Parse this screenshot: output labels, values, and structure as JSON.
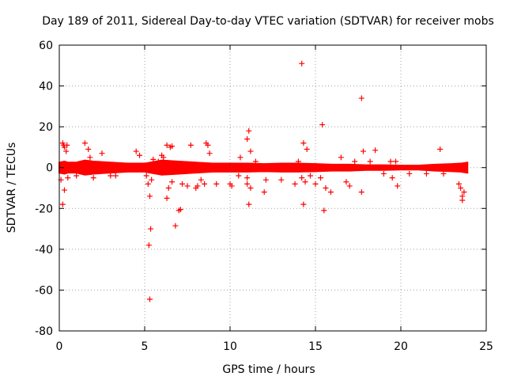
{
  "chart_data": {
    "type": "scatter",
    "title": "Day 189 of 2011, Sidereal Day-to-day VTEC variation (SDTVAR) for receiver mobs",
    "xlabel": "GPS time / hours",
    "ylabel": "SDTVAR / TECUs",
    "xlim": [
      0,
      25
    ],
    "ylim": [
      -80,
      60
    ],
    "xticks": [
      0,
      5,
      10,
      15,
      20,
      25
    ],
    "yticks": [
      -80,
      -60,
      -40,
      -20,
      0,
      20,
      40,
      60
    ],
    "grid": true,
    "marker": "+",
    "series": [
      {
        "name": "mobs",
        "color": "#ff0000",
        "band": [
          [
            0.0,
            2.5
          ],
          [
            0.3,
            3.0
          ],
          [
            0.5,
            2.5
          ],
          [
            1.0,
            2.5
          ],
          [
            1.5,
            3.5
          ],
          [
            2.0,
            3.0
          ],
          [
            3.0,
            2.5
          ],
          [
            4.0,
            2.0
          ],
          [
            5.0,
            2.0
          ],
          [
            6.0,
            3.5
          ],
          [
            7.0,
            3.0
          ],
          [
            8.0,
            2.5
          ],
          [
            9.0,
            2.0
          ],
          [
            10.0,
            2.0
          ],
          [
            11.0,
            2.0
          ],
          [
            12.0,
            1.8
          ],
          [
            13.0,
            2.0
          ],
          [
            14.0,
            2.0
          ],
          [
            15.0,
            1.8
          ],
          [
            16.0,
            1.5
          ],
          [
            17.0,
            1.5
          ],
          [
            18.0,
            1.2
          ],
          [
            19.0,
            1.2
          ],
          [
            20.0,
            1.0
          ],
          [
            21.0,
            1.0
          ],
          [
            22.0,
            1.5
          ],
          [
            23.0,
            1.8
          ],
          [
            23.5,
            2.0
          ],
          [
            23.9,
            2.5
          ]
        ],
        "outliers": [
          [
            0.2,
            12
          ],
          [
            0.25,
            11
          ],
          [
            0.3,
            10
          ],
          [
            0.4,
            8
          ],
          [
            0.45,
            11
          ],
          [
            0.2,
            -18
          ],
          [
            0.3,
            -11
          ],
          [
            0.1,
            -6
          ],
          [
            0.5,
            -5
          ],
          [
            1.0,
            -4
          ],
          [
            1.5,
            12
          ],
          [
            1.7,
            9
          ],
          [
            1.8,
            5
          ],
          [
            2.0,
            -5
          ],
          [
            2.5,
            7
          ],
          [
            3.0,
            -4
          ],
          [
            3.3,
            -4
          ],
          [
            4.5,
            8
          ],
          [
            4.7,
            6
          ],
          [
            5.1,
            -4
          ],
          [
            5.2,
            -8
          ],
          [
            5.25,
            -38
          ],
          [
            5.3,
            -64.5
          ],
          [
            5.35,
            -30
          ],
          [
            5.3,
            -14
          ],
          [
            5.4,
            -6
          ],
          [
            5.5,
            4
          ],
          [
            5.8,
            3
          ],
          [
            6.0,
            6
          ],
          [
            6.1,
            5
          ],
          [
            6.3,
            11
          ],
          [
            6.5,
            10
          ],
          [
            6.6,
            10.5
          ],
          [
            6.4,
            -10
          ],
          [
            6.3,
            -15
          ],
          [
            6.6,
            -7
          ],
          [
            6.8,
            -28.5
          ],
          [
            7.0,
            -21
          ],
          [
            7.1,
            -20.5
          ],
          [
            7.2,
            -8
          ],
          [
            7.5,
            -9
          ],
          [
            7.7,
            11
          ],
          [
            8.0,
            -10
          ],
          [
            8.1,
            -9
          ],
          [
            8.3,
            -6
          ],
          [
            8.6,
            12
          ],
          [
            8.7,
            11
          ],
          [
            8.5,
            -8
          ],
          [
            8.8,
            7
          ],
          [
            9.2,
            -8
          ],
          [
            10.0,
            -8
          ],
          [
            10.1,
            -9
          ],
          [
            10.5,
            -4
          ],
          [
            10.6,
            5
          ],
          [
            11.0,
            14
          ],
          [
            11.1,
            18
          ],
          [
            11.2,
            8
          ],
          [
            11.0,
            -8
          ],
          [
            11.1,
            -18
          ],
          [
            11.0,
            -5
          ],
          [
            11.2,
            -10
          ],
          [
            11.5,
            3
          ],
          [
            12.0,
            -12
          ],
          [
            12.1,
            -6
          ],
          [
            13.0,
            -6
          ],
          [
            13.8,
            -8
          ],
          [
            14.0,
            3
          ],
          [
            14.2,
            51
          ],
          [
            14.3,
            12
          ],
          [
            14.3,
            -18
          ],
          [
            14.2,
            -5
          ],
          [
            14.4,
            -7
          ],
          [
            14.5,
            9
          ],
          [
            14.7,
            -4
          ],
          [
            15.0,
            -8
          ],
          [
            15.3,
            -5
          ],
          [
            15.4,
            21
          ],
          [
            15.5,
            -21
          ],
          [
            15.6,
            -10
          ],
          [
            15.9,
            -12
          ],
          [
            16.5,
            5
          ],
          [
            16.8,
            -7
          ],
          [
            17.0,
            -9
          ],
          [
            17.3,
            3
          ],
          [
            17.7,
            34
          ],
          [
            17.8,
            8
          ],
          [
            17.7,
            -12
          ],
          [
            18.2,
            3
          ],
          [
            18.5,
            8.5
          ],
          [
            19.0,
            -3
          ],
          [
            19.4,
            3
          ],
          [
            19.5,
            -5
          ],
          [
            19.7,
            3
          ],
          [
            19.8,
            -9
          ],
          [
            20.5,
            -3
          ],
          [
            21.5,
            -3
          ],
          [
            22.3,
            9
          ],
          [
            22.5,
            -3
          ],
          [
            23.4,
            -8
          ],
          [
            23.5,
            -10
          ],
          [
            23.6,
            -14
          ],
          [
            23.6,
            -16
          ],
          [
            23.7,
            -12
          ]
        ]
      }
    ]
  }
}
